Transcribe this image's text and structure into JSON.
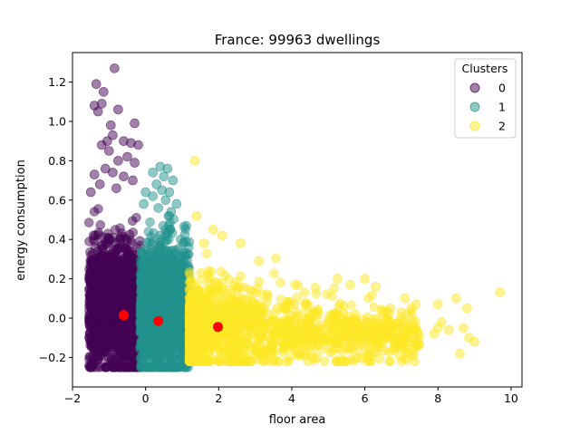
{
  "chart_data": {
    "type": "scatter",
    "title": "France:  99963 dwellings",
    "xlabel": "floor area",
    "ylabel": "energy consumption",
    "xlim": [
      -2,
      10.3
    ],
    "ylim": [
      -0.35,
      1.35
    ],
    "xticks": [
      -2,
      0,
      2,
      4,
      6,
      8,
      10
    ],
    "yticks": [
      -0.2,
      0.0,
      0.2,
      0.4,
      0.6,
      0.8,
      1.0,
      1.2
    ],
    "ytick_labels": [
      "−0.2",
      "0.0",
      "0.2",
      "0.4",
      "0.6",
      "0.8",
      "1.0",
      "1.2"
    ],
    "xtick_labels": [
      "−2",
      "0",
      "2",
      "4",
      "6",
      "8",
      "10"
    ],
    "grid": false,
    "legend": {
      "title": "Clusters",
      "placement": "top-right",
      "entries": [
        "0",
        "1",
        "2"
      ]
    },
    "series": [
      {
        "name": "0",
        "color": "#440154",
        "x_range": [
          -1.55,
          -0.15
        ],
        "y_range": [
          -0.25,
          0.6
        ],
        "outliers": [
          {
            "x": -0.85,
            "y": 1.27
          },
          {
            "x": -1.35,
            "y": 1.19
          },
          {
            "x": -1.15,
            "y": 1.15
          },
          {
            "x": -1.4,
            "y": 1.08
          },
          {
            "x": -1.2,
            "y": 1.09
          },
          {
            "x": -0.75,
            "y": 1.06
          },
          {
            "x": -1.3,
            "y": 1.05
          },
          {
            "x": -0.95,
            "y": 0.98
          },
          {
            "x": -0.3,
            "y": 0.99
          },
          {
            "x": -0.9,
            "y": 0.93
          },
          {
            "x": -1.2,
            "y": 0.88
          },
          {
            "x": -1.05,
            "y": 0.9
          },
          {
            "x": -0.6,
            "y": 0.9
          },
          {
            "x": -0.4,
            "y": 0.89
          },
          {
            "x": -0.2,
            "y": 0.88
          },
          {
            "x": -1.0,
            "y": 0.85
          },
          {
            "x": -0.75,
            "y": 0.8
          },
          {
            "x": -0.5,
            "y": 0.82
          },
          {
            "x": -0.3,
            "y": 0.79
          },
          {
            "x": -1.1,
            "y": 0.76
          },
          {
            "x": -0.9,
            "y": 0.74
          },
          {
            "x": -1.4,
            "y": 0.73
          },
          {
            "x": -0.6,
            "y": 0.72
          },
          {
            "x": -0.35,
            "y": 0.7
          },
          {
            "x": -1.25,
            "y": 0.68
          },
          {
            "x": -0.8,
            "y": 0.66
          },
          {
            "x": -1.5,
            "y": 0.64
          }
        ]
      },
      {
        "name": "1",
        "color": "#21918c",
        "x_range": [
          -0.15,
          1.2
        ],
        "y_range": [
          -0.25,
          0.52
        ],
        "outliers": [
          {
            "x": 0.4,
            "y": 0.77
          },
          {
            "x": 0.6,
            "y": 0.76
          },
          {
            "x": 0.2,
            "y": 0.74
          },
          {
            "x": 0.5,
            "y": 0.72
          },
          {
            "x": 0.75,
            "y": 0.7
          },
          {
            "x": 0.3,
            "y": 0.68
          },
          {
            "x": 0.45,
            "y": 0.65
          },
          {
            "x": 0.65,
            "y": 0.64
          },
          {
            "x": 0.2,
            "y": 0.62
          },
          {
            "x": 0.55,
            "y": 0.6
          },
          {
            "x": 0.85,
            "y": 0.58
          },
          {
            "x": 0.35,
            "y": 0.56
          },
          {
            "x": 0.0,
            "y": 0.64
          },
          {
            "x": -0.05,
            "y": 0.58
          },
          {
            "x": 0.7,
            "y": 0.54
          }
        ]
      },
      {
        "name": "2",
        "color": "#fde725",
        "x_range": [
          1.2,
          7.5
        ],
        "y_range": [
          -0.22,
          0.35
        ],
        "outliers": [
          {
            "x": 1.35,
            "y": 0.8
          },
          {
            "x": 1.4,
            "y": 0.52
          },
          {
            "x": 1.85,
            "y": 0.45
          },
          {
            "x": 2.1,
            "y": 0.42
          },
          {
            "x": 2.6,
            "y": 0.38
          },
          {
            "x": 1.6,
            "y": 0.38
          },
          {
            "x": 3.1,
            "y": 0.29
          },
          {
            "x": 5.25,
            "y": 0.2
          },
          {
            "x": 6.0,
            "y": 0.2
          },
          {
            "x": 5.6,
            "y": 0.17
          },
          {
            "x": 6.3,
            "y": 0.16
          },
          {
            "x": 9.7,
            "y": 0.13
          },
          {
            "x": 8.5,
            "y": 0.1
          },
          {
            "x": 7.1,
            "y": 0.1
          },
          {
            "x": 8.0,
            "y": 0.07
          },
          {
            "x": 7.4,
            "y": 0.07
          },
          {
            "x": 8.8,
            "y": 0.05
          },
          {
            "x": 6.7,
            "y": 0.05
          },
          {
            "x": 7.0,
            "y": 0.03
          },
          {
            "x": 8.1,
            "y": -0.02
          },
          {
            "x": 8.7,
            "y": -0.05
          },
          {
            "x": 8.0,
            "y": -0.05
          },
          {
            "x": 8.3,
            "y": -0.06
          },
          {
            "x": 7.9,
            "y": -0.08
          },
          {
            "x": 8.85,
            "y": -0.1
          },
          {
            "x": 7.2,
            "y": -0.12
          },
          {
            "x": 9.0,
            "y": -0.12
          },
          {
            "x": 8.6,
            "y": -0.18
          },
          {
            "x": 6.3,
            "y": -0.12
          },
          {
            "x": 7.0,
            "y": -0.15
          }
        ]
      }
    ],
    "centroids": {
      "color": "#ff0000",
      "points": [
        {
          "x": -0.6,
          "y": 0.015
        },
        {
          "x": 0.35,
          "y": -0.015
        },
        {
          "x": 1.98,
          "y": -0.045
        }
      ]
    }
  }
}
